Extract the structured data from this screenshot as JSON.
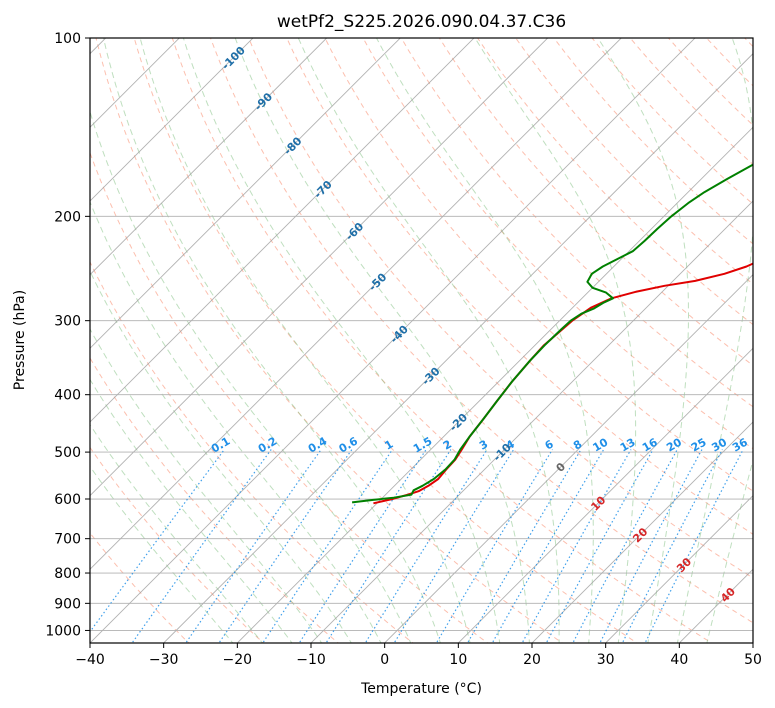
{
  "chart_data": {
    "type": "line",
    "title": "wetPf2_S225.2026.090.04.37.C36",
    "xlabel": "Temperature (°C)",
    "ylabel": "Pressure (hPa)",
    "xlim": [
      -40,
      50
    ],
    "ylim": [
      1050,
      100
    ],
    "x_ticks": [
      -40,
      -30,
      -20,
      -10,
      0,
      10,
      20,
      30,
      40,
      50
    ],
    "x_tick_labels": [
      "−40",
      "−30",
      "−20",
      "−10",
      "0",
      "10",
      "20",
      "30",
      "40",
      "50"
    ],
    "y_ticks": [
      1000,
      900,
      800,
      700,
      600,
      500,
      400,
      300,
      200,
      100
    ],
    "y_tick_labels": [
      "1000",
      "900",
      "800",
      "700",
      "600",
      "500",
      "400",
      "300",
      "200",
      "100"
    ],
    "grid": true,
    "series": [
      {
        "name": "temperature",
        "color": "#e00000",
        "points": [
          [
            -20.5,
            610
          ],
          [
            -18.5,
            600
          ],
          [
            -17,
            590
          ],
          [
            -16,
            582
          ],
          [
            -15.4,
            570
          ],
          [
            -15,
            555
          ],
          [
            -15.2,
            535
          ],
          [
            -15.3,
            515
          ],
          [
            -15.8,
            495
          ],
          [
            -16.5,
            470
          ],
          [
            -17,
            440
          ],
          [
            -17.6,
            410
          ],
          [
            -18.2,
            380
          ],
          [
            -18.6,
            350
          ],
          [
            -18.8,
            330
          ],
          [
            -18.3,
            300
          ],
          [
            -17.5,
            285
          ],
          [
            -16,
            275
          ],
          [
            -13.5,
            268
          ],
          [
            -10.5,
            262
          ],
          [
            -7,
            257
          ],
          [
            -4,
            250
          ],
          [
            -2,
            243
          ],
          [
            0,
            232
          ],
          [
            2,
            222
          ],
          [
            4.5,
            212
          ],
          [
            7,
            202
          ],
          [
            9.5,
            192
          ],
          [
            11.5,
            182
          ],
          [
            13,
            174
          ],
          [
            14.5,
            166
          ],
          [
            15.5,
            158
          ],
          [
            16.5,
            150
          ],
          [
            17.5,
            143
          ],
          [
            18.5,
            136
          ],
          [
            20,
            130
          ],
          [
            21,
            125
          ],
          [
            22,
            120
          ],
          [
            23,
            114
          ],
          [
            24.5,
            108
          ],
          [
            26.5,
            100
          ]
        ]
      },
      {
        "name": "dewpoint",
        "color": "#008000",
        "points": [
          [
            -23.5,
            608
          ],
          [
            -21,
            602
          ],
          [
            -18.5,
            597
          ],
          [
            -16.5,
            590
          ],
          [
            -16.8,
            580
          ],
          [
            -16.2,
            570
          ],
          [
            -15.6,
            555
          ],
          [
            -15.3,
            535
          ],
          [
            -15.4,
            515
          ],
          [
            -16,
            495
          ],
          [
            -16.5,
            470
          ],
          [
            -17,
            440
          ],
          [
            -17.6,
            410
          ],
          [
            -18.2,
            380
          ],
          [
            -18.6,
            350
          ],
          [
            -18.7,
            330
          ],
          [
            -18.6,
            310
          ],
          [
            -18.5,
            300
          ],
          [
            -18,
            292
          ],
          [
            -17,
            286
          ],
          [
            -16.5,
            280
          ],
          [
            -15.8,
            275
          ],
          [
            -17.5,
            269
          ],
          [
            -20,
            264
          ],
          [
            -21.5,
            258
          ],
          [
            -22,
            250
          ],
          [
            -21.5,
            243
          ],
          [
            -20.5,
            236
          ],
          [
            -19.5,
            229
          ],
          [
            -19.3,
            220
          ],
          [
            -19.2,
            210
          ],
          [
            -19,
            200
          ],
          [
            -18.5,
            190
          ],
          [
            -17.8,
            182
          ],
          [
            -16.5,
            173
          ],
          [
            -15,
            164
          ],
          [
            -13.5,
            156
          ],
          [
            -12,
            148
          ],
          [
            -10,
            140
          ],
          [
            -8,
            132
          ],
          [
            -5.5,
            124
          ],
          [
            -3,
            117
          ],
          [
            -1,
            111
          ],
          [
            0.5,
            106
          ],
          [
            2,
            102
          ],
          [
            2.6,
            100
          ]
        ]
      }
    ],
    "dry_adiabat_labels": [
      "-100",
      "-90",
      "-80",
      "-70",
      "-60",
      "-50",
      "-40",
      "-30",
      "-20",
      "-10"
    ],
    "moist_adiabat_labels": [
      "0",
      "10",
      "20",
      "30",
      "40"
    ],
    "mixing_ratio_labels": [
      "0.1",
      "0.2",
      "0.4",
      "0.6",
      "1",
      "1.5",
      "2",
      "3",
      "4",
      "6",
      "8",
      "10",
      "13",
      "16",
      "20",
      "25",
      "30",
      "36"
    ],
    "colors": {
      "temperature": "#e00000",
      "dewpoint": "#008000",
      "dry_adiabat": "#fa8a6b",
      "moist_adiabat": "#7fbf7f",
      "mixing_ratio": "#1f8fe8",
      "isotherm": "#9e9e9e",
      "isobar": "#b0b0b0",
      "dry_label": "#1f6fa8",
      "moist_label": "#d62728"
    }
  }
}
